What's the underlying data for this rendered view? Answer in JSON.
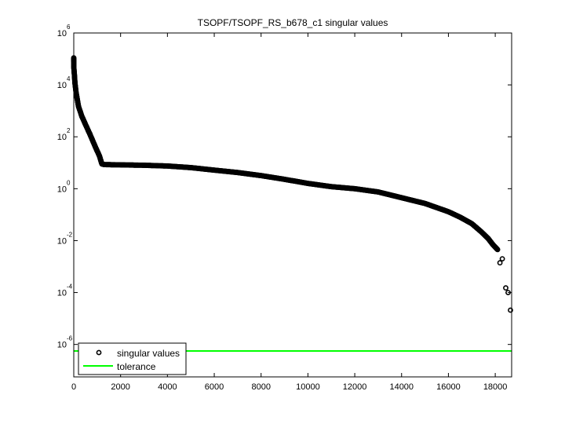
{
  "chart_data": {
    "type": "scatter",
    "title": "TSOPF/TSOPF_RS_b678_c1 singular values",
    "xlabel": "",
    "ylabel": "",
    "xlim": [
      0,
      18700
    ],
    "ylim_log10": [
      -7.25,
      6
    ],
    "yscale": "log",
    "grid": false,
    "legend_position": "lower left",
    "x_ticks": [
      0,
      2000,
      4000,
      6000,
      8000,
      10000,
      12000,
      14000,
      16000,
      18000
    ],
    "x_tick_labels": [
      "0",
      "2000",
      "4000",
      "6000",
      "8000",
      "10000",
      "12000",
      "14000",
      "16000",
      "18000"
    ],
    "y_ticks_exp": [
      6,
      4,
      2,
      0,
      -2,
      -4,
      -6
    ],
    "y_tick_labels": [
      "10^6",
      "10^4",
      "10^2",
      "10^0",
      "10^-2",
      "10^-4",
      "10^-6"
    ],
    "series": [
      {
        "name": "singular values",
        "marker": "circle-open",
        "color": "#000000",
        "x": [
          0,
          5,
          20,
          50,
          100,
          200,
          350,
          500,
          700,
          900,
          1100,
          1200,
          1300,
          2000,
          3000,
          4000,
          5000,
          6000,
          7000,
          8000,
          9000,
          10000,
          11000,
          12000,
          13000,
          14000,
          15000,
          16000,
          16500,
          17000,
          17400,
          17700,
          17900,
          18100,
          18200,
          18300,
          18450,
          18550,
          18650
        ],
        "values": [
          110000,
          45000,
          30000,
          12000,
          5000,
          1500,
          600,
          300,
          120,
          45,
          18,
          9,
          8.5,
          8.3,
          8.0,
          7.5,
          6.5,
          5.2,
          4.2,
          3.2,
          2.3,
          1.6,
          1.2,
          1.0,
          0.75,
          0.45,
          0.27,
          0.13,
          0.08,
          0.045,
          0.022,
          0.012,
          0.007,
          0.0045,
          0.0014,
          0.002,
          0.00015,
          0.0001,
          2.1e-05
        ]
      },
      {
        "name": "tolerance",
        "marker": "line",
        "color": "#00ff00",
        "x": [
          0,
          18700
        ],
        "values": [
          5.6e-07,
          5.6e-07
        ]
      }
    ]
  },
  "legend": {
    "items": [
      {
        "label": "singular values"
      },
      {
        "label": "tolerance"
      }
    ]
  }
}
